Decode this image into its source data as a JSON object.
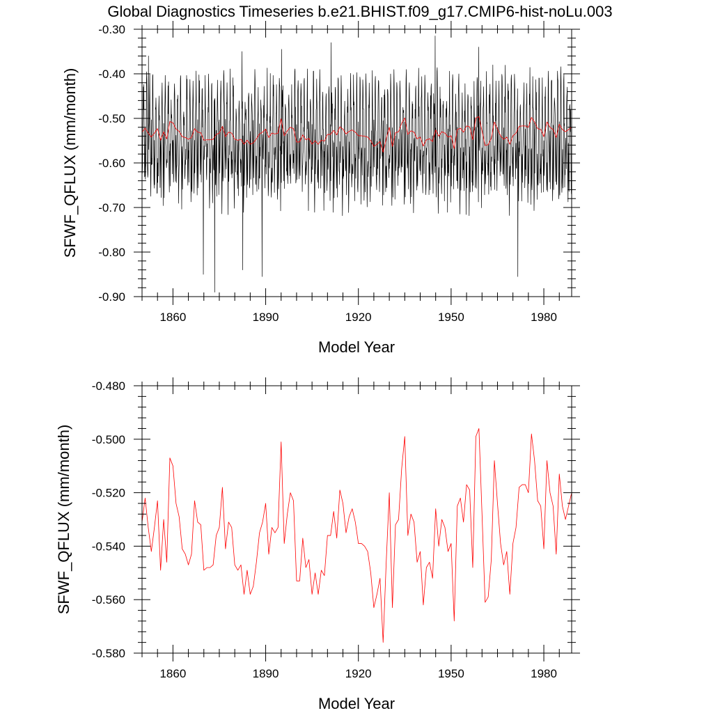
{
  "figure": {
    "title": "Global Diagnostics Timeseries b.e21.BHIST.f09_g17.CMIP6-hist-noLu.003"
  },
  "colors": {
    "monthly": "#000000",
    "annual": "#ff0000"
  },
  "chart_data": [
    {
      "type": "line",
      "panel": "top",
      "title": "Global Diagnostics Timeseries b.e21.BHIST.f09_g17.CMIP6-hist-noLu.003",
      "xlabel": "Model Year",
      "ylabel": "SFWF_QFLUX (mm/month)",
      "xlim": [
        1850,
        1989
      ],
      "ylim": [
        -0.9,
        -0.3
      ],
      "x_ticks": [
        1860,
        1890,
        1920,
        1950,
        1980
      ],
      "x_tick_labels": [
        "1860",
        "1890",
        "1920",
        "1950",
        "1980"
      ],
      "y_ticks": [
        -0.3,
        -0.4,
        -0.5,
        -0.6,
        -0.7,
        -0.8,
        -0.9
      ],
      "y_tick_labels": [
        "-0.30",
        "-0.40",
        "-0.50",
        "-0.60",
        "-0.70",
        "-0.80",
        "-0.90"
      ],
      "grid": false,
      "legend": "none",
      "series": [
        {
          "style": "monthly",
          "x_start": 1850,
          "x_step": 0.0833333,
          "seasonal_mean": -0.535,
          "seasonal_cycle": [
            -0.56,
            -0.6,
            -0.62,
            -0.57,
            -0.5,
            -0.45,
            -0.44,
            -0.47,
            -0.53,
            -0.6,
            -0.66,
            -0.61
          ],
          "noise_amplitude": 0.06,
          "extremes": [
            {
              "x": 1873.5,
              "y": -0.89
            },
            {
              "x": 1869.8,
              "y": -0.85
            },
            {
              "x": 1888.8,
              "y": -0.855
            },
            {
              "x": 1882.6,
              "y": -0.84
            },
            {
              "x": 1971.6,
              "y": -0.855
            },
            {
              "x": 1944.8,
              "y": -0.315
            },
            {
              "x": 1911.2,
              "y": -0.33
            },
            {
              "x": 1895.2,
              "y": -0.345
            },
            {
              "x": 1958.9,
              "y": -0.34
            },
            {
              "x": 1882.3,
              "y": -0.35
            },
            {
              "x": 1852.1,
              "y": -0.36
            }
          ]
        },
        {
          "style": "annual",
          "x": [
            1850,
            1851,
            1852,
            1853,
            1854,
            1855,
            1856,
            1857,
            1858,
            1859,
            1860,
            1861,
            1862,
            1863,
            1864,
            1865,
            1866,
            1867,
            1868,
            1869,
            1870,
            1871,
            1872,
            1873,
            1874,
            1875,
            1876,
            1877,
            1878,
            1879,
            1880,
            1881,
            1882,
            1883,
            1884,
            1885,
            1886,
            1887,
            1888,
            1889,
            1890,
            1891,
            1892,
            1893,
            1894,
            1895,
            1896,
            1897,
            1898,
            1899,
            1900,
            1901,
            1902,
            1903,
            1904,
            1905,
            1906,
            1907,
            1908,
            1909,
            1910,
            1911,
            1912,
            1913,
            1914,
            1915,
            1916,
            1917,
            1918,
            1919,
            1920,
            1921,
            1922,
            1923,
            1924,
            1925,
            1926,
            1927,
            1928,
            1929,
            1930,
            1931,
            1932,
            1933,
            1934,
            1935,
            1936,
            1937,
            1938,
            1939,
            1940,
            1941,
            1942,
            1943,
            1944,
            1945,
            1946,
            1947,
            1948,
            1949,
            1950,
            1951,
            1952,
            1953,
            1954,
            1955,
            1956,
            1957,
            1958,
            1959,
            1960,
            1961,
            1962,
            1963,
            1964,
            1965,
            1966,
            1967,
            1968,
            1969,
            1970,
            1971,
            1972,
            1973,
            1974,
            1975,
            1976,
            1977,
            1978,
            1979,
            1980,
            1981,
            1982,
            1983,
            1984,
            1985,
            1986,
            1987,
            1988,
            1989
          ],
          "y": [
            -0.531,
            -0.522,
            -0.533,
            -0.542,
            -0.533,
            -0.523,
            -0.549,
            -0.53,
            -0.546,
            -0.507,
            -0.51,
            -0.524,
            -0.529,
            -0.541,
            -0.543,
            -0.547,
            -0.543,
            -0.523,
            -0.531,
            -0.532,
            -0.549,
            -0.548,
            -0.548,
            -0.547,
            -0.536,
            -0.533,
            -0.518,
            -0.541,
            -0.531,
            -0.533,
            -0.547,
            -0.549,
            -0.547,
            -0.558,
            -0.549,
            -0.558,
            -0.555,
            -0.546,
            -0.535,
            -0.531,
            -0.524,
            -0.543,
            -0.533,
            -0.535,
            -0.533,
            -0.501,
            -0.539,
            -0.528,
            -0.52,
            -0.523,
            -0.553,
            -0.553,
            -0.537,
            -0.548,
            -0.545,
            -0.558,
            -0.55,
            -0.558,
            -0.549,
            -0.551,
            -0.536,
            -0.536,
            -0.527,
            -0.537,
            -0.519,
            -0.524,
            -0.535,
            -0.529,
            -0.526,
            -0.531,
            -0.539,
            -0.539,
            -0.54,
            -0.542,
            -0.55,
            -0.563,
            -0.558,
            -0.552,
            -0.576,
            -0.546,
            -0.52,
            -0.563,
            -0.532,
            -0.53,
            -0.511,
            -0.499,
            -0.536,
            -0.528,
            -0.531,
            -0.546,
            -0.542,
            -0.562,
            -0.548,
            -0.546,
            -0.552,
            -0.526,
            -0.54,
            -0.53,
            -0.533,
            -0.542,
            -0.539,
            -0.568,
            -0.525,
            -0.522,
            -0.531,
            -0.517,
            -0.519,
            -0.548,
            -0.499,
            -0.496,
            -0.528,
            -0.561,
            -0.559,
            -0.545,
            -0.508,
            -0.524,
            -0.539,
            -0.547,
            -0.542,
            -0.558,
            -0.539,
            -0.533,
            -0.518,
            -0.517,
            -0.517,
            -0.52,
            -0.498,
            -0.508,
            -0.523,
            -0.525,
            -0.541,
            -0.508,
            -0.52,
            -0.525,
            -0.543,
            -0.513,
            -0.525,
            -0.53,
            -0.525,
            -0.52
          ]
        }
      ]
    },
    {
      "type": "line",
      "panel": "bottom",
      "title": "",
      "xlabel": "Model Year",
      "ylabel": "SFWF_QFLUX (mm/month)",
      "xlim": [
        1850,
        1989
      ],
      "ylim": [
        -0.58,
        -0.48
      ],
      "x_ticks": [
        1860,
        1890,
        1920,
        1950,
        1980
      ],
      "x_tick_labels": [
        "1860",
        "1890",
        "1920",
        "1950",
        "1980"
      ],
      "y_ticks": [
        -0.48,
        -0.5,
        -0.52,
        -0.54,
        -0.56,
        -0.58
      ],
      "y_tick_labels": [
        "-0.480",
        "-0.500",
        "-0.520",
        "-0.540",
        "-0.560",
        "-0.580"
      ],
      "grid": false,
      "legend": "none",
      "series": [
        {
          "style": "annual",
          "x": [
            1850,
            1851,
            1852,
            1853,
            1854,
            1855,
            1856,
            1857,
            1858,
            1859,
            1860,
            1861,
            1862,
            1863,
            1864,
            1865,
            1866,
            1867,
            1868,
            1869,
            1870,
            1871,
            1872,
            1873,
            1874,
            1875,
            1876,
            1877,
            1878,
            1879,
            1880,
            1881,
            1882,
            1883,
            1884,
            1885,
            1886,
            1887,
            1888,
            1889,
            1890,
            1891,
            1892,
            1893,
            1894,
            1895,
            1896,
            1897,
            1898,
            1899,
            1900,
            1901,
            1902,
            1903,
            1904,
            1905,
            1906,
            1907,
            1908,
            1909,
            1910,
            1911,
            1912,
            1913,
            1914,
            1915,
            1916,
            1917,
            1918,
            1919,
            1920,
            1921,
            1922,
            1923,
            1924,
            1925,
            1926,
            1927,
            1928,
            1929,
            1930,
            1931,
            1932,
            1933,
            1934,
            1935,
            1936,
            1937,
            1938,
            1939,
            1940,
            1941,
            1942,
            1943,
            1944,
            1945,
            1946,
            1947,
            1948,
            1949,
            1950,
            1951,
            1952,
            1953,
            1954,
            1955,
            1956,
            1957,
            1958,
            1959,
            1960,
            1961,
            1962,
            1963,
            1964,
            1965,
            1966,
            1967,
            1968,
            1969,
            1970,
            1971,
            1972,
            1973,
            1974,
            1975,
            1976,
            1977,
            1978,
            1979,
            1980,
            1981,
            1982,
            1983,
            1984,
            1985,
            1986,
            1987,
            1988,
            1989
          ],
          "y": [
            -0.531,
            -0.522,
            -0.533,
            -0.542,
            -0.533,
            -0.523,
            -0.549,
            -0.53,
            -0.546,
            -0.507,
            -0.51,
            -0.524,
            -0.529,
            -0.541,
            -0.543,
            -0.547,
            -0.543,
            -0.523,
            -0.531,
            -0.532,
            -0.549,
            -0.548,
            -0.548,
            -0.547,
            -0.536,
            -0.533,
            -0.518,
            -0.541,
            -0.531,
            -0.533,
            -0.547,
            -0.549,
            -0.547,
            -0.558,
            -0.549,
            -0.558,
            -0.555,
            -0.546,
            -0.535,
            -0.531,
            -0.524,
            -0.543,
            -0.533,
            -0.535,
            -0.533,
            -0.501,
            -0.539,
            -0.528,
            -0.52,
            -0.523,
            -0.553,
            -0.553,
            -0.537,
            -0.548,
            -0.545,
            -0.558,
            -0.55,
            -0.558,
            -0.549,
            -0.551,
            -0.536,
            -0.536,
            -0.527,
            -0.537,
            -0.519,
            -0.524,
            -0.535,
            -0.529,
            -0.526,
            -0.531,
            -0.539,
            -0.539,
            -0.54,
            -0.542,
            -0.55,
            -0.563,
            -0.558,
            -0.552,
            -0.576,
            -0.546,
            -0.52,
            -0.563,
            -0.532,
            -0.53,
            -0.511,
            -0.499,
            -0.536,
            -0.528,
            -0.531,
            -0.546,
            -0.542,
            -0.562,
            -0.548,
            -0.546,
            -0.552,
            -0.526,
            -0.54,
            -0.53,
            -0.533,
            -0.542,
            -0.539,
            -0.568,
            -0.525,
            -0.522,
            -0.531,
            -0.517,
            -0.519,
            -0.548,
            -0.499,
            -0.496,
            -0.528,
            -0.561,
            -0.559,
            -0.545,
            -0.508,
            -0.524,
            -0.539,
            -0.547,
            -0.542,
            -0.558,
            -0.539,
            -0.533,
            -0.518,
            -0.517,
            -0.517,
            -0.52,
            -0.498,
            -0.508,
            -0.523,
            -0.525,
            -0.541,
            -0.508,
            -0.52,
            -0.525,
            -0.543,
            -0.513,
            -0.525,
            -0.53,
            -0.525,
            -0.52
          ]
        }
      ]
    }
  ]
}
